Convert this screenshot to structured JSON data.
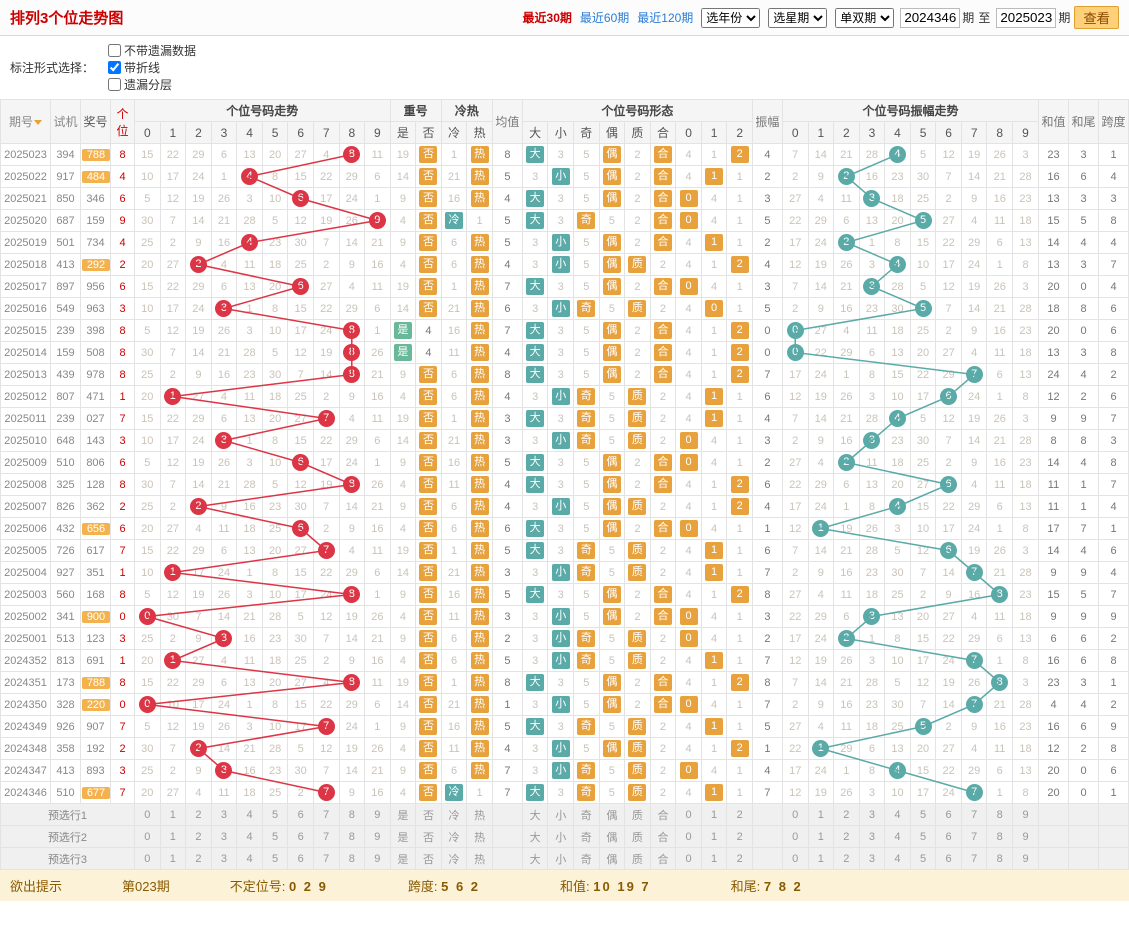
{
  "title": "排列3个位走势图",
  "period_links": [
    {
      "label": "最近30期",
      "active": true
    },
    {
      "label": "最近60期",
      "active": false
    },
    {
      "label": "最近120期",
      "active": false
    }
  ],
  "selects": [
    "选年份",
    "选星期",
    "单双期"
  ],
  "range": {
    "from": "2024346",
    "to": "2025023",
    "label_from": "期",
    "label_to": "至",
    "label_end": "期",
    "btn": "查看"
  },
  "options_label": "标注形式选择：",
  "options": [
    {
      "label": "不带遗漏数据",
      "checked": false
    },
    {
      "label": "带折线",
      "checked": true
    },
    {
      "label": "遗漏分层",
      "checked": false
    }
  ],
  "headers": {
    "period": "期号",
    "draw": "试机",
    "prize": "奖号",
    "gw": "个位",
    "trend": "个位号码走势",
    "digits": [
      "0",
      "1",
      "2",
      "3",
      "4",
      "5",
      "6",
      "7",
      "8",
      "9"
    ],
    "repeat": "重号",
    "repeat_sub": [
      "是",
      "否"
    ],
    "hotcold": "冷热",
    "hotcold_sub": [
      "冷",
      "热"
    ],
    "avg": "均值",
    "shape": "个位号码形态",
    "shape_sub": [
      "大",
      "小",
      "奇",
      "偶",
      "质",
      "合",
      "0",
      "1",
      "2"
    ],
    "amp": "振幅",
    "amp_trend": "个位号码振幅走势",
    "sum": "和值",
    "tail": "和尾",
    "span": "跨度"
  },
  "hl_prizes": [
    "788",
    "484",
    "292",
    "656",
    "900",
    "788",
    "220",
    "677"
  ],
  "rows": [
    {
      "p": "2025023",
      "d": "394",
      "z": "788",
      "g": 8,
      "r": "否",
      "hc": "热",
      "avg": 8,
      "sh": [
        "大",
        "",
        "",
        "偶",
        "",
        "合",
        "",
        "",
        "2"
      ],
      "amp": 4,
      "av": 4,
      "sum": 23,
      "tail": 3,
      "span": 1
    },
    {
      "p": "2025022",
      "d": "917",
      "z": "484",
      "g": 4,
      "r": "否",
      "hc": "热",
      "avg": 5,
      "sh": [
        "",
        "小",
        "",
        "偶",
        "",
        "合",
        "",
        "1",
        ""
      ],
      "amp": 2,
      "av": 2,
      "sum": 16,
      "tail": 6,
      "span": 4
    },
    {
      "p": "2025021",
      "d": "850",
      "z": "346",
      "g": 6,
      "r": "否",
      "hc": "热",
      "avg": 4,
      "sh": [
        "大",
        "",
        "",
        "偶",
        "",
        "合",
        "0",
        "",
        ""
      ],
      "amp": 3,
      "av": 3,
      "sum": 13,
      "tail": 3,
      "span": 3
    },
    {
      "p": "2025020",
      "d": "687",
      "z": "159",
      "g": 9,
      "r": "否",
      "hc": "冷",
      "avg": 5,
      "sh": [
        "大",
        "",
        "奇",
        "",
        "",
        "合",
        "0",
        "",
        ""
      ],
      "amp": 5,
      "av": 5,
      "sum": 15,
      "tail": 5,
      "span": 8
    },
    {
      "p": "2025019",
      "d": "501",
      "z": "734",
      "g": 4,
      "r": "否",
      "hc": "热",
      "avg": 5,
      "sh": [
        "",
        "小",
        "",
        "偶",
        "",
        "合",
        "",
        "1",
        ""
      ],
      "amp": 2,
      "av": 2,
      "sum": 14,
      "tail": 4,
      "span": 4
    },
    {
      "p": "2025018",
      "d": "413",
      "z": "292",
      "g": 2,
      "r": "否",
      "hc": "热",
      "avg": 4,
      "sh": [
        "",
        "小",
        "",
        "偶",
        "质",
        "",
        "",
        "",
        "2"
      ],
      "amp": 4,
      "av": 4,
      "sum": 13,
      "tail": 3,
      "span": 7
    },
    {
      "p": "2025017",
      "d": "897",
      "z": "956",
      "g": 6,
      "r": "否",
      "hc": "热",
      "avg": 7,
      "sh": [
        "大",
        "",
        "",
        "偶",
        "",
        "合",
        "0",
        "",
        ""
      ],
      "amp": 3,
      "av": 3,
      "sum": 20,
      "tail": 0,
      "span": 4
    },
    {
      "p": "2025016",
      "d": "549",
      "z": "963",
      "g": 3,
      "r": "否",
      "hc": "热",
      "avg": 6,
      "sh": [
        "",
        "小",
        "奇",
        "",
        "质",
        "",
        "",
        "0",
        ""
      ],
      "amp": 5,
      "av": 5,
      "sum": 18,
      "tail": 8,
      "span": 6
    },
    {
      "p": "2025015",
      "d": "239",
      "z": "398",
      "g": 8,
      "r": "是",
      "hc": "热",
      "avg": 7,
      "sh": [
        "大",
        "",
        "",
        "偶",
        "",
        "合",
        "",
        "",
        "2"
      ],
      "amp": 0,
      "av": 0,
      "sum": 20,
      "tail": 0,
      "span": 6
    },
    {
      "p": "2025014",
      "d": "159",
      "z": "508",
      "g": 8,
      "r": "是",
      "hc": "热",
      "avg": 4,
      "sh": [
        "大",
        "",
        "",
        "偶",
        "",
        "合",
        "",
        "",
        "2"
      ],
      "amp": 0,
      "av": 0,
      "sum": 13,
      "tail": 3,
      "span": 8
    },
    {
      "p": "2025013",
      "d": "439",
      "z": "978",
      "g": 8,
      "r": "否",
      "hc": "热",
      "avg": 8,
      "sh": [
        "大",
        "",
        "",
        "偶",
        "",
        "合",
        "",
        "",
        "2"
      ],
      "amp": 7,
      "av": 7,
      "sum": 24,
      "tail": 4,
      "span": 2
    },
    {
      "p": "2025012",
      "d": "807",
      "z": "471",
      "g": 1,
      "r": "否",
      "hc": "热",
      "avg": 4,
      "sh": [
        "",
        "小",
        "奇",
        "",
        "质",
        "",
        "",
        "1",
        ""
      ],
      "amp": 6,
      "av": 6,
      "sum": 12,
      "tail": 2,
      "span": 6
    },
    {
      "p": "2025011",
      "d": "239",
      "z": "027",
      "g": 7,
      "r": "否",
      "hc": "热",
      "avg": 3,
      "sh": [
        "大",
        "",
        "奇",
        "",
        "质",
        "",
        "",
        "1",
        ""
      ],
      "amp": 4,
      "av": 4,
      "sum": 9,
      "tail": 9,
      "span": 7
    },
    {
      "p": "2025010",
      "d": "648",
      "z": "143",
      "g": 3,
      "r": "否",
      "hc": "热",
      "avg": 3,
      "sh": [
        "",
        "小",
        "奇",
        "",
        "质",
        "",
        "0",
        "",
        ""
      ],
      "amp": 3,
      "av": 3,
      "sum": 8,
      "tail": 8,
      "span": 3
    },
    {
      "p": "2025009",
      "d": "510",
      "z": "806",
      "g": 6,
      "r": "否",
      "hc": "热",
      "avg": 5,
      "sh": [
        "大",
        "",
        "",
        "偶",
        "",
        "合",
        "0",
        "",
        ""
      ],
      "amp": 2,
      "av": 2,
      "sum": 14,
      "tail": 4,
      "span": 8
    },
    {
      "p": "2025008",
      "d": "325",
      "z": "128",
      "g": 8,
      "r": "否",
      "hc": "热",
      "avg": 4,
      "sh": [
        "大",
        "",
        "",
        "偶",
        "",
        "合",
        "",
        "",
        "2"
      ],
      "amp": 6,
      "av": 6,
      "sum": 11,
      "tail": 1,
      "span": 7
    },
    {
      "p": "2025007",
      "d": "826",
      "z": "362",
      "g": 2,
      "r": "否",
      "hc": "热",
      "avg": 4,
      "sh": [
        "",
        "小",
        "",
        "偶",
        "质",
        "",
        "",
        "",
        "2"
      ],
      "amp": 4,
      "av": 4,
      "sum": 11,
      "tail": 1,
      "span": 4
    },
    {
      "p": "2025006",
      "d": "432",
      "z": "656",
      "g": 6,
      "r": "否",
      "hc": "热",
      "avg": 6,
      "sh": [
        "大",
        "",
        "",
        "偶",
        "",
        "合",
        "0",
        "",
        ""
      ],
      "amp": 1,
      "av": 1,
      "sum": 17,
      "tail": 7,
      "span": 1
    },
    {
      "p": "2025005",
      "d": "726",
      "z": "617",
      "g": 7,
      "r": "否",
      "hc": "热",
      "avg": 5,
      "sh": [
        "大",
        "",
        "奇",
        "",
        "质",
        "",
        "",
        "1",
        ""
      ],
      "amp": 6,
      "av": 6,
      "sum": 14,
      "tail": 4,
      "span": 6
    },
    {
      "p": "2025004",
      "d": "927",
      "z": "351",
      "g": 1,
      "r": "否",
      "hc": "热",
      "avg": 3,
      "sh": [
        "",
        "小",
        "奇",
        "",
        "质",
        "",
        "",
        "1",
        ""
      ],
      "amp": 7,
      "av": 7,
      "sum": 9,
      "tail": 9,
      "span": 4
    },
    {
      "p": "2025003",
      "d": "560",
      "z": "168",
      "g": 8,
      "r": "否",
      "hc": "热",
      "avg": 5,
      "sh": [
        "大",
        "",
        "",
        "偶",
        "",
        "合",
        "",
        "",
        "2"
      ],
      "amp": 8,
      "av": 8,
      "sum": 15,
      "tail": 5,
      "span": 7
    },
    {
      "p": "2025002",
      "d": "341",
      "z": "900",
      "g": 0,
      "r": "否",
      "hc": "热",
      "avg": 3,
      "sh": [
        "",
        "小",
        "",
        "偶",
        "",
        "合",
        "0",
        "",
        ""
      ],
      "amp": 3,
      "av": 3,
      "sum": 9,
      "tail": 9,
      "span": 9
    },
    {
      "p": "2025001",
      "d": "513",
      "z": "123",
      "g": 3,
      "r": "否",
      "hc": "热",
      "avg": 2,
      "sh": [
        "",
        "小",
        "奇",
        "",
        "质",
        "",
        "0",
        "",
        ""
      ],
      "amp": 2,
      "av": 2,
      "sum": 6,
      "tail": 6,
      "span": 2
    },
    {
      "p": "2024352",
      "d": "813",
      "z": "691",
      "g": 1,
      "r": "否",
      "hc": "热",
      "avg": 5,
      "sh": [
        "",
        "小",
        "奇",
        "",
        "质",
        "",
        "",
        "1",
        ""
      ],
      "amp": 7,
      "av": 7,
      "sum": 16,
      "tail": 6,
      "span": 8
    },
    {
      "p": "2024351",
      "d": "173",
      "z": "788",
      "g": 8,
      "r": "否",
      "hc": "热",
      "avg": 8,
      "sh": [
        "大",
        "",
        "",
        "偶",
        "",
        "合",
        "",
        "",
        "2"
      ],
      "amp": 8,
      "av": 8,
      "sum": 23,
      "tail": 3,
      "span": 1
    },
    {
      "p": "2024350",
      "d": "328",
      "z": "220",
      "g": 0,
      "r": "否",
      "hc": "热",
      "avg": 1,
      "sh": [
        "",
        "小",
        "",
        "偶",
        "",
        "合",
        "0",
        "",
        ""
      ],
      "amp": 7,
      "av": 7,
      "sum": 4,
      "tail": 4,
      "span": 2
    },
    {
      "p": "2024349",
      "d": "926",
      "z": "907",
      "g": 7,
      "r": "否",
      "hc": "热",
      "avg": 5,
      "sh": [
        "大",
        "",
        "奇",
        "",
        "质",
        "",
        "",
        "1",
        ""
      ],
      "amp": 5,
      "av": 5,
      "sum": 16,
      "tail": 6,
      "span": 9
    },
    {
      "p": "2024348",
      "d": "358",
      "z": "192",
      "g": 2,
      "r": "否",
      "hc": "热",
      "avg": 4,
      "sh": [
        "",
        "小",
        "",
        "偶",
        "质",
        "",
        "",
        "",
        "2"
      ],
      "amp": 1,
      "av": 1,
      "sum": 12,
      "tail": 2,
      "span": 8
    },
    {
      "p": "2024347",
      "d": "413",
      "z": "893",
      "g": 3,
      "r": "否",
      "hc": "热",
      "avg": 7,
      "sh": [
        "",
        "小",
        "奇",
        "",
        "质",
        "",
        "0",
        "",
        ""
      ],
      "amp": 4,
      "av": 4,
      "sum": 20,
      "tail": 0,
      "span": 6
    },
    {
      "p": "2024346",
      "d": "510",
      "z": "677",
      "g": 7,
      "r": "否",
      "hc": "冷",
      "avg": 7,
      "sh": [
        "大",
        "",
        "奇",
        "",
        "质",
        "",
        "",
        "1",
        ""
      ],
      "amp": 7,
      "av": 7,
      "sum": 20,
      "tail": 0,
      "span": 1
    }
  ],
  "miss_seed": 7,
  "forecast_labels": [
    "预选行1",
    "预选行2",
    "预选行3"
  ],
  "footer": {
    "hint": "欲出提示",
    "period": "第023期",
    "items": [
      {
        "k": "不定位号:",
        "v": "0 2 9"
      },
      {
        "k": "跨度:",
        "v": "5 6 2"
      },
      {
        "k": "和值:",
        "v": "10 19 7"
      },
      {
        "k": "和尾:",
        "v": "7 8 2"
      }
    ]
  },
  "colors": {
    "red": "#dc3545",
    "teal": "#5aaaa8",
    "orange": "#e8a23d",
    "green": "#6ab89a"
  }
}
